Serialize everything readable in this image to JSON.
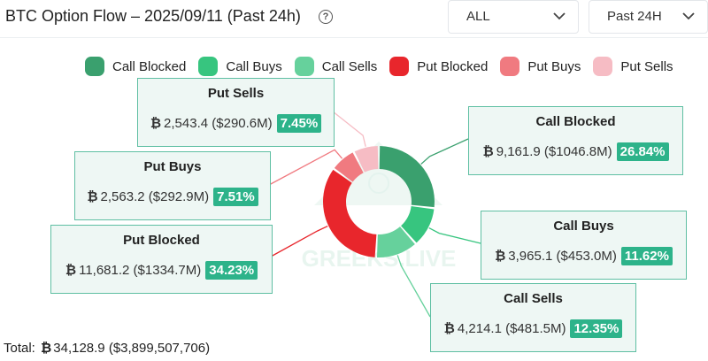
{
  "header": {
    "title": "BTC Option Flow – 2025/09/11 (Past 24h)",
    "help_glyph": "?",
    "type_select": "ALL",
    "range_select": "Past 24H"
  },
  "watermark": "GREEKS.LIVE",
  "currency_symbol": "₿",
  "legend": [
    {
      "label": "Call Blocked",
      "color": "#3aa06e"
    },
    {
      "label": "Call Buys",
      "color": "#37c57f"
    },
    {
      "label": "Call Sells",
      "color": "#66d19c"
    },
    {
      "label": "Put Blocked",
      "color": "#e8262c"
    },
    {
      "label": "Put Buys",
      "color": "#f07a80"
    },
    {
      "label": "Put Sells",
      "color": "#f6bcc4"
    }
  ],
  "boxes": {
    "put_sells": {
      "title": "Put Sells",
      "btc": "2,543.4",
      "usd": "($290.6M)",
      "pct": "7.45%"
    },
    "put_buys": {
      "title": "Put Buys",
      "btc": "2,563.2",
      "usd": "($292.9M)",
      "pct": "7.51%"
    },
    "put_blocked": {
      "title": "Put Blocked",
      "btc": "11,681.2",
      "usd": "($1334.7M)",
      "pct": "34.23%"
    },
    "call_blocked": {
      "title": "Call Blocked",
      "btc": "9,161.9",
      "usd": "($1046.8M)",
      "pct": "26.84%"
    },
    "call_buys": {
      "title": "Call Buys",
      "btc": "3,965.1",
      "usd": "($453.0M)",
      "pct": "11.62%"
    },
    "call_sells": {
      "title": "Call Sells",
      "btc": "4,214.1",
      "usd": "($481.5M)",
      "pct": "12.35%"
    }
  },
  "total": {
    "label": "Total:",
    "btc": "34,128.9",
    "usd": "($3,899,507,706)"
  },
  "chart_data": {
    "type": "pie",
    "title": "BTC Option Flow – 2025/09/11 (Past 24h)",
    "unit": "BTC",
    "categories": [
      "Call Blocked",
      "Call Buys",
      "Call Sells",
      "Put Blocked",
      "Put Buys",
      "Put Sells"
    ],
    "values": [
      9161.9,
      3965.1,
      4214.1,
      11681.2,
      2563.2,
      2543.4
    ],
    "percentages": [
      26.84,
      11.62,
      12.35,
      34.23,
      7.51,
      7.45
    ],
    "usd_values_millions": [
      1046.8,
      453.0,
      481.5,
      1334.7,
      292.9,
      290.6
    ],
    "colors": [
      "#3aa06e",
      "#37c57f",
      "#66d19c",
      "#e8262c",
      "#f07a80",
      "#f6bcc4"
    ],
    "legend_position": "top"
  }
}
